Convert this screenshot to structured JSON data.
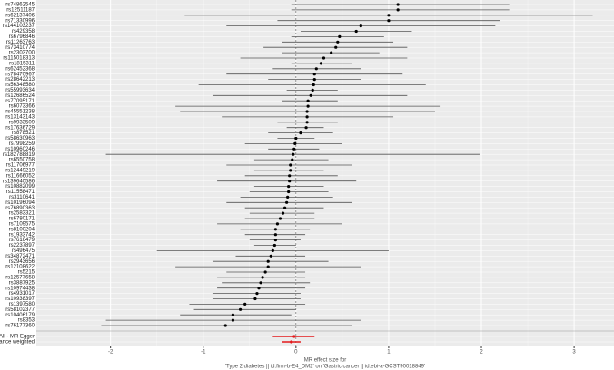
{
  "chart_data": {
    "type": "forest",
    "categories": [
      "rs74862545",
      "rs12511187",
      "rs62137406",
      "rs71330996",
      "rs144103237",
      "rs429358",
      "rs6796846",
      "rs11263763",
      "rs73410774",
      "rs2303700",
      "rs115018313",
      "rs1815311",
      "rs62452368",
      "rs78470967",
      "rs28642213",
      "rs56348580",
      "rs55993634",
      "rs12686524",
      "rs77095171",
      "rs6073366",
      "rs45551238",
      "rs13143143",
      "rs9933509",
      "rs17636729",
      "rs878521",
      "rs58630963",
      "rs7998259",
      "rs10960246",
      "rs182788819",
      "rs6550758",
      "rs11706977",
      "rs12449219",
      "rs11666052",
      "rs139640586",
      "rs10882099",
      "rs11558471",
      "rs3110641",
      "rs10196094",
      "rs76890363",
      "rs2583321",
      "rs6780171",
      "rs7109575",
      "rs8100204",
      "rs1933742",
      "rs7616479",
      "rs2237897",
      "rs496475",
      "rs34872471",
      "rs2943656",
      "rs12108622",
      "rs5215",
      "rs12577658",
      "rs3887925",
      "rs10974438",
      "rs4931017",
      "rs10938397",
      "rs1397580",
      "rs58102377",
      "rs10406179",
      "rs8353",
      "rs76177360"
    ],
    "estimates": [
      1.1,
      1.1,
      1.0,
      1.0,
      0.7,
      0.65,
      0.47,
      0.45,
      0.43,
      0.38,
      0.3,
      0.27,
      0.22,
      0.2,
      0.2,
      0.19,
      0.18,
      0.16,
      0.13,
      0.13,
      0.12,
      0.12,
      0.12,
      0.11,
      0.05,
      0.0,
      -0.01,
      -0.02,
      -0.03,
      -0.04,
      -0.06,
      -0.06,
      -0.07,
      -0.07,
      -0.08,
      -0.08,
      -0.09,
      -0.1,
      -0.12,
      -0.14,
      -0.17,
      -0.2,
      -0.22,
      -0.22,
      -0.22,
      -0.23,
      -0.25,
      -0.27,
      -0.3,
      -0.3,
      -0.33,
      -0.36,
      -0.38,
      -0.4,
      -0.42,
      -0.44,
      -0.55,
      -0.6,
      -0.68,
      -0.68,
      -0.76
    ],
    "lower": [
      -0.05,
      -0.05,
      -1.2,
      -0.2,
      -0.75,
      0.05,
      -0.05,
      -0.15,
      -0.35,
      -0.15,
      -0.6,
      -0.05,
      -0.25,
      -0.75,
      -0.3,
      -1.05,
      -0.1,
      -0.9,
      -0.15,
      -1.3,
      -1.25,
      -0.8,
      -0.2,
      -0.1,
      -0.3,
      -0.2,
      -0.55,
      -0.3,
      -2.05,
      -0.45,
      -0.75,
      -0.45,
      -0.55,
      -0.85,
      -0.45,
      -0.5,
      -0.6,
      -0.75,
      -0.55,
      -0.5,
      -0.55,
      -0.85,
      -0.6,
      -0.55,
      -0.5,
      -0.45,
      -1.5,
      -0.65,
      -0.9,
      -1.3,
      -0.75,
      -0.85,
      -0.8,
      -0.85,
      -0.9,
      -0.9,
      -1.15,
      -1.1,
      -1.25,
      -2.05,
      -2.1
    ],
    "upper": [
      2.3,
      2.3,
      3.2,
      2.2,
      2.15,
      1.25,
      0.95,
      1.05,
      1.2,
      0.9,
      1.2,
      0.6,
      0.7,
      1.15,
      0.7,
      1.4,
      0.45,
      1.2,
      0.45,
      1.55,
      1.5,
      1.05,
      0.45,
      0.3,
      0.4,
      0.2,
      0.5,
      0.25,
      1.98,
      0.35,
      0.6,
      0.3,
      0.45,
      0.65,
      0.3,
      0.35,
      0.4,
      0.6,
      0.3,
      0.2,
      0.2,
      0.5,
      0.15,
      0.1,
      0.05,
      0.0,
      1.0,
      0.1,
      0.35,
      0.7,
      0.1,
      0.1,
      0.15,
      0.1,
      0.05,
      0.05,
      0.1,
      0.0,
      -0.05,
      0.7,
      0.6
    ],
    "color": "#555555",
    "summary": {
      "categories": [
        "All - MR Egger",
        "All - Inverse variance weighted"
      ],
      "estimates": [
        -0.02,
        -0.05
      ],
      "lower": [
        -0.25,
        -0.15
      ],
      "upper": [
        0.2,
        0.05
      ],
      "color": "#e41a1c"
    },
    "xlim": [
      -2.8,
      3.43
    ],
    "xticks": [
      -2,
      -1,
      0,
      1,
      2,
      3
    ],
    "reference_line": 0,
    "grid": true,
    "xlabel": [
      "MR effect size for",
      "'Type 2 diabetes || id:finn-b-E4_DM2' on 'Gastric cancer || id:ebi-a-GCST90018849'"
    ]
  }
}
